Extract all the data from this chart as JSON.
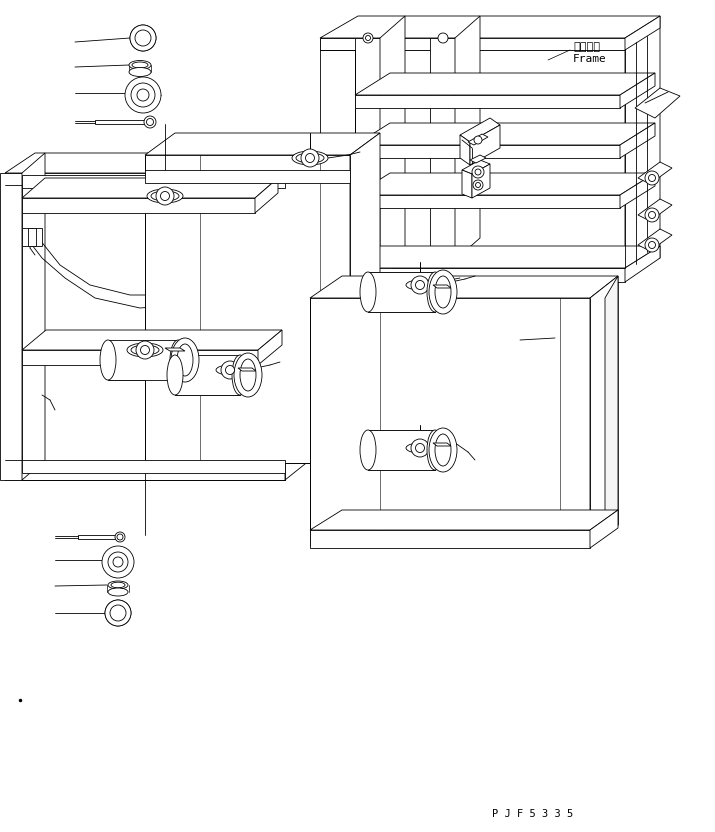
{
  "background_color": "#ffffff",
  "line_color": "#000000",
  "text_color": "#000000",
  "figsize": [
    7.15,
    8.32
  ],
  "dpi": 100,
  "label_frame_jp": "フレーム",
  "label_frame_en": "Frame",
  "part_number": "P J F 5 3 3 5",
  "linewidth": 0.6
}
